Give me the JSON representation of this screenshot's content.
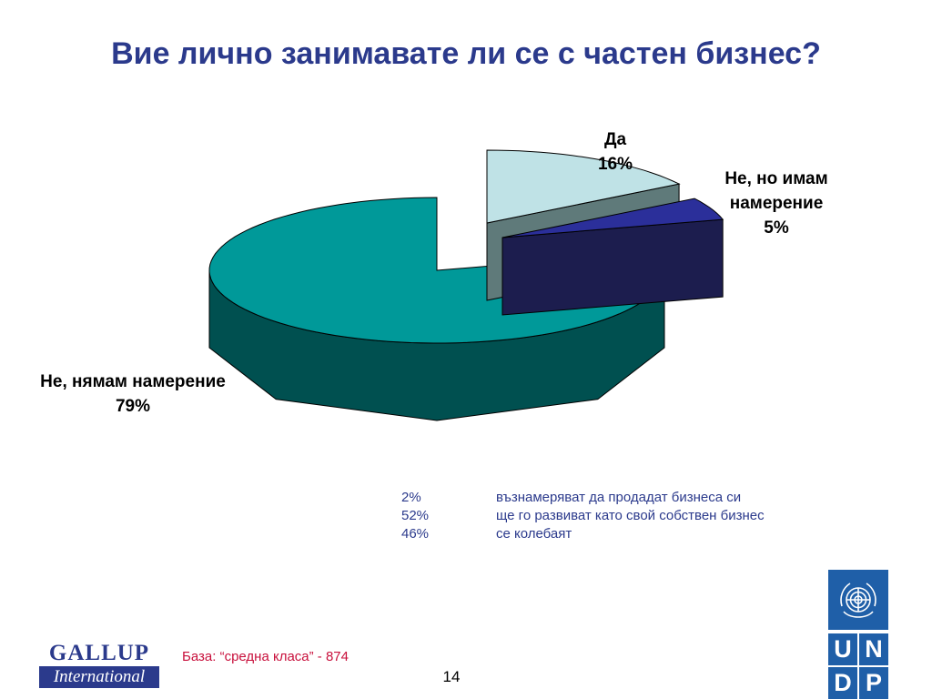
{
  "chart_data": {
    "type": "pie",
    "title": "Вие лично занимавате ли се с частен бизнес?",
    "slices": [
      {
        "label": "Не, нямам намерение",
        "value": 79,
        "value_label": "79%",
        "color": "#009999",
        "side_color": "#005050"
      },
      {
        "label": "Да",
        "value": 16,
        "value_label": "16%",
        "color": "#bfe2e6",
        "side_color": "#5f7a7a"
      },
      {
        "label": "Не, но имам намерение",
        "value": 5,
        "value_label": "5%",
        "color": "#2b2f9a",
        "side_color": "#1c1d4e"
      }
    ],
    "exploded": [
      "Да",
      "Не, но имам намерение"
    ],
    "three_d": true
  },
  "notes": [
    {
      "pct": "2%",
      "text": "възнамеряват да продадат бизнеса си"
    },
    {
      "pct": "52%",
      "text": "ще го развиват като свой собствен бизнес"
    },
    {
      "pct": "46%",
      "text": "се колебаят"
    }
  ],
  "footer": {
    "base": "База: “средна класа” - 874",
    "page_number": "14",
    "gallup_top": "GALLUP",
    "gallup_bottom": "International",
    "undp_letters": [
      "U",
      "N",
      "D",
      "P"
    ]
  }
}
